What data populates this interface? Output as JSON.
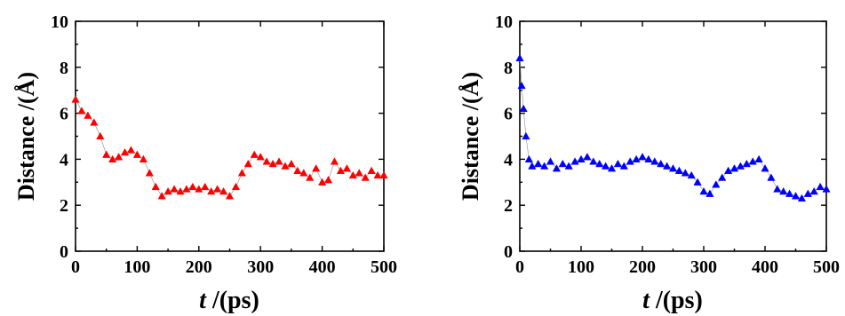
{
  "chart_data": [
    {
      "type": "scatter",
      "title": "",
      "xlabel_symbol": "t",
      "xlabel_rest": " /(ps)",
      "ylabel": "Distance /(Å)",
      "xlim": [
        0,
        500
      ],
      "ylim": [
        0,
        10
      ],
      "xticks": [
        0,
        100,
        200,
        300,
        400,
        500
      ],
      "xticklabels": [
        "0",
        "100",
        "200",
        "300",
        "400",
        "500"
      ],
      "yticks": [
        0,
        2,
        4,
        6,
        8,
        10
      ],
      "yticklabels": [
        "0",
        "2",
        "4",
        "6",
        "8",
        "10"
      ],
      "color": "#ff0000",
      "marker": "triangle",
      "grid": false,
      "series": [
        {
          "x": [
            0,
            10,
            20,
            30,
            40,
            50,
            60,
            70,
            80,
            90,
            100,
            110,
            120,
            130,
            140,
            150,
            160,
            170,
            180,
            190,
            200,
            210,
            220,
            230,
            240,
            250,
            260,
            270,
            280,
            290,
            300,
            310,
            320,
            330,
            340,
            350,
            360,
            370,
            380,
            390,
            400,
            410,
            420,
            430,
            440,
            450,
            460,
            470,
            480,
            490,
            500
          ],
          "y": [
            6.6,
            6.1,
            5.9,
            5.6,
            5.0,
            4.2,
            4.0,
            4.1,
            4.3,
            4.4,
            4.2,
            4.0,
            3.4,
            2.8,
            2.4,
            2.6,
            2.7,
            2.6,
            2.7,
            2.8,
            2.7,
            2.8,
            2.6,
            2.7,
            2.6,
            2.4,
            2.8,
            3.4,
            3.8,
            4.2,
            4.1,
            3.9,
            3.8,
            3.9,
            3.7,
            3.8,
            3.5,
            3.4,
            3.2,
            3.6,
            3.0,
            3.1,
            3.9,
            3.5,
            3.6,
            3.3,
            3.4,
            3.2,
            3.5,
            3.3,
            3.3
          ]
        }
      ]
    },
    {
      "type": "scatter",
      "title": "",
      "xlabel_symbol": "t",
      "xlabel_rest": " /(ps)",
      "ylabel": "Distance /(Å)",
      "xlim": [
        0,
        500
      ],
      "ylim": [
        0,
        10
      ],
      "xticks": [
        0,
        100,
        200,
        300,
        400,
        500
      ],
      "xticklabels": [
        "0",
        "100",
        "200",
        "300",
        "400",
        "500"
      ],
      "yticks": [
        0,
        2,
        4,
        6,
        8,
        10
      ],
      "yticklabels": [
        "0",
        "2",
        "4",
        "6",
        "8",
        "10"
      ],
      "color": "#0000ff",
      "marker": "triangle",
      "grid": false,
      "series": [
        {
          "x": [
            0,
            3,
            6,
            10,
            15,
            20,
            30,
            40,
            50,
            60,
            70,
            80,
            90,
            100,
            110,
            120,
            130,
            140,
            150,
            160,
            170,
            180,
            190,
            200,
            210,
            220,
            230,
            240,
            250,
            260,
            270,
            280,
            290,
            300,
            310,
            320,
            330,
            340,
            350,
            360,
            370,
            380,
            390,
            400,
            410,
            420,
            430,
            440,
            450,
            460,
            470,
            480,
            490,
            500
          ],
          "y": [
            8.4,
            7.2,
            6.2,
            5.0,
            4.0,
            3.7,
            3.8,
            3.7,
            3.9,
            3.6,
            3.8,
            3.7,
            3.9,
            4.0,
            4.1,
            3.9,
            3.8,
            3.7,
            3.6,
            3.8,
            3.7,
            3.9,
            4.0,
            4.1,
            4.0,
            3.9,
            3.8,
            3.7,
            3.6,
            3.5,
            3.4,
            3.3,
            3.0,
            2.6,
            2.5,
            2.9,
            3.2,
            3.5,
            3.6,
            3.7,
            3.8,
            3.9,
            4.0,
            3.6,
            3.2,
            2.7,
            2.6,
            2.5,
            2.4,
            2.3,
            2.5,
            2.6,
            2.8,
            2.7
          ]
        }
      ]
    }
  ]
}
